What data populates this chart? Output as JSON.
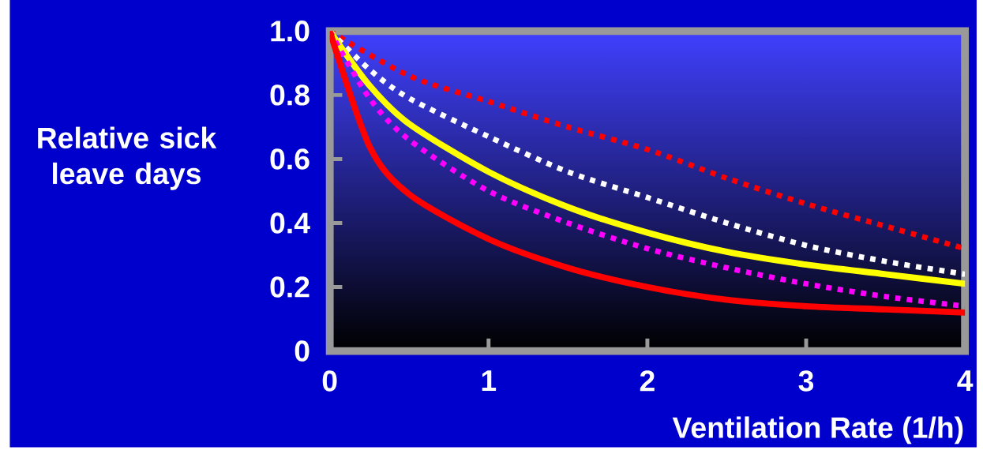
{
  "chart_data": {
    "type": "line",
    "xlabel": "Ventilation Rate (1/h)",
    "ylabel": "Relative sick leave days",
    "xlim": [
      0,
      4
    ],
    "ylim": [
      0,
      1.0
    ],
    "xticks": [
      0,
      1,
      2,
      3,
      4
    ],
    "yticks": [
      {
        "value": 0,
        "label": "0"
      },
      {
        "value": 0.2,
        "label": "0.2"
      },
      {
        "value": 0.4,
        "label": "0.4"
      },
      {
        "value": 0.6,
        "label": "0.6"
      },
      {
        "value": 0.8,
        "label": "0.8"
      },
      {
        "value": 1.0,
        "label": "1.0"
      }
    ],
    "grid": false,
    "series": [
      {
        "color": "#ff0000",
        "line_style": "dotted",
        "x": [
          0,
          0.5,
          1,
          1.5,
          2,
          2.5,
          3,
          3.5,
          4
        ],
        "values": [
          1.0,
          0.86,
          0.78,
          0.7,
          0.63,
          0.54,
          0.46,
          0.39,
          0.32
        ]
      },
      {
        "color": "#ffffff",
        "line_style": "dotted",
        "x": [
          0,
          0.25,
          0.5,
          1,
          1.5,
          2,
          2.5,
          3,
          3.5,
          4
        ],
        "values": [
          1.0,
          0.88,
          0.79,
          0.67,
          0.56,
          0.48,
          0.4,
          0.33,
          0.28,
          0.24
        ]
      },
      {
        "color": "#ffff00",
        "line_style": "solid",
        "x": [
          0,
          0.25,
          0.5,
          1,
          1.5,
          2,
          2.5,
          3,
          3.5,
          4
        ],
        "values": [
          1.0,
          0.83,
          0.71,
          0.56,
          0.45,
          0.37,
          0.31,
          0.27,
          0.24,
          0.21
        ]
      },
      {
        "color": "#ff00ff",
        "line_style": "dotted",
        "x": [
          0,
          0.25,
          0.5,
          1,
          1.5,
          2,
          2.5,
          3,
          3.5,
          4
        ],
        "values": [
          1.0,
          0.79,
          0.66,
          0.5,
          0.4,
          0.32,
          0.26,
          0.21,
          0.17,
          0.14
        ]
      },
      {
        "color": "#ff0000",
        "line_style": "solid",
        "x": [
          0,
          0.25,
          0.5,
          1,
          1.5,
          2,
          2.5,
          3,
          3.5,
          4
        ],
        "values": [
          1.0,
          0.64,
          0.49,
          0.35,
          0.26,
          0.2,
          0.16,
          0.14,
          0.13,
          0.12
        ]
      }
    ]
  }
}
